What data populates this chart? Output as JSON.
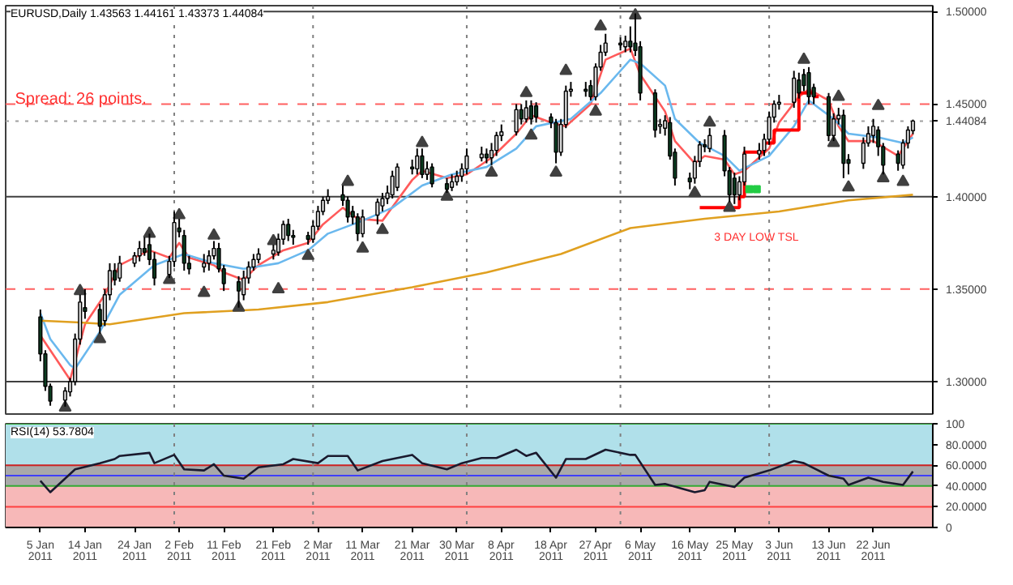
{
  "chart_data": [
    {
      "type": "candlestick",
      "title": "EURUSD,Daily 1.43563 1.44161 1.43373 1.44084",
      "x": [
        "2011-01-05",
        "2011-01-06",
        "2011-01-07",
        "2011-01-10",
        "2011-01-11",
        "2011-01-12",
        "2011-01-13",
        "2011-01-14",
        "2011-01-17",
        "2011-01-18",
        "2011-01-19",
        "2011-01-20",
        "2011-01-21",
        "2011-01-24",
        "2011-01-25",
        "2011-01-26",
        "2011-01-27",
        "2011-01-28",
        "2011-01-31",
        "2011-02-01",
        "2011-02-02",
        "2011-02-03",
        "2011-02-04",
        "2011-02-07",
        "2011-02-08",
        "2011-02-09",
        "2011-02-10",
        "2011-02-11",
        "2011-02-14",
        "2011-02-15",
        "2011-02-16",
        "2011-02-17",
        "2011-02-18",
        "2011-02-21",
        "2011-02-22",
        "2011-02-23",
        "2011-02-24",
        "2011-02-25",
        "2011-02-28",
        "2011-03-01",
        "2011-03-02",
        "2011-03-03",
        "2011-03-04",
        "2011-03-07",
        "2011-03-08",
        "2011-03-09",
        "2011-03-10",
        "2011-03-11",
        "2011-03-14",
        "2011-03-15",
        "2011-03-16",
        "2011-03-17",
        "2011-03-18",
        "2011-03-21",
        "2011-03-22",
        "2011-03-23",
        "2011-03-24",
        "2011-03-25",
        "2011-03-28",
        "2011-03-29",
        "2011-03-30",
        "2011-03-31",
        "2011-04-01",
        "2011-04-04",
        "2011-04-05",
        "2011-04-06",
        "2011-04-07",
        "2011-04-08",
        "2011-04-11",
        "2011-04-12",
        "2011-04-13",
        "2011-04-14",
        "2011-04-15",
        "2011-04-18",
        "2011-04-19",
        "2011-04-20",
        "2011-04-21",
        "2011-04-22",
        "2011-04-25",
        "2011-04-26",
        "2011-04-27",
        "2011-04-28",
        "2011-04-29",
        "2011-05-02",
        "2011-05-03",
        "2011-05-04",
        "2011-05-05",
        "2011-05-06",
        "2011-05-09",
        "2011-05-10",
        "2011-05-11",
        "2011-05-12",
        "2011-05-13",
        "2011-05-16",
        "2011-05-17",
        "2011-05-18",
        "2011-05-19",
        "2011-05-20",
        "2011-05-23",
        "2011-05-24",
        "2011-05-25",
        "2011-05-26",
        "2011-05-27",
        "2011-05-30",
        "2011-05-31",
        "2011-06-01",
        "2011-06-02",
        "2011-06-03",
        "2011-06-06",
        "2011-06-07",
        "2011-06-08",
        "2011-06-09",
        "2011-06-10",
        "2011-06-13",
        "2011-06-14",
        "2011-06-15",
        "2011-06-16",
        "2011-06-17",
        "2011-06-20",
        "2011-06-21",
        "2011-06-22",
        "2011-06-23",
        "2011-06-24",
        "2011-06-27",
        "2011-06-28",
        "2011-06-29",
        "2011-06-30"
      ],
      "ohlc": [
        [
          1.335,
          1.339,
          1.311,
          1.315
        ],
        [
          1.315,
          1.317,
          1.295,
          1.2975
        ],
        [
          1.2975,
          1.299,
          1.287,
          1.2895
        ],
        [
          1.29,
          1.297,
          1.2865,
          1.295
        ],
        [
          1.2945,
          1.302,
          1.292,
          1.3
        ],
        [
          1.3,
          1.326,
          1.298,
          1.323
        ],
        [
          1.323,
          1.347,
          1.32,
          1.343
        ],
        [
          1.34,
          1.35,
          1.334,
          1.338
        ],
        [
          1.339,
          1.342,
          1.326,
          1.33
        ],
        [
          1.333,
          1.35,
          1.33,
          1.347
        ],
        [
          1.347,
          1.364,
          1.344,
          1.36
        ],
        [
          1.36,
          1.364,
          1.352,
          1.355
        ],
        [
          1.356,
          1.368,
          1.354,
          1.364
        ],
        [
          1.364,
          1.37,
          1.362,
          1.368
        ],
        [
          1.368,
          1.376,
          1.365,
          1.372
        ],
        [
          1.372,
          1.378,
          1.368,
          1.37
        ],
        [
          1.374,
          1.38,
          1.363,
          1.366
        ],
        [
          1.366,
          1.37,
          1.352,
          1.356
        ],
        [
          1.358,
          1.368,
          1.356,
          1.365
        ],
        [
          1.365,
          1.392,
          1.362,
          1.386
        ],
        [
          1.383,
          1.388,
          1.378,
          1.381
        ],
        [
          1.379,
          1.382,
          1.36,
          1.364
        ],
        [
          1.364,
          1.368,
          1.358,
          1.361
        ],
        [
          1.362,
          1.369,
          1.359,
          1.364
        ],
        [
          1.364,
          1.371,
          1.36,
          1.368
        ],
        [
          1.368,
          1.376,
          1.366,
          1.372
        ],
        [
          1.372,
          1.375,
          1.359,
          1.361
        ],
        [
          1.361,
          1.363,
          1.349,
          1.353
        ],
        [
          1.354,
          1.357,
          1.34,
          1.349
        ],
        [
          1.347,
          1.36,
          1.344,
          1.356
        ],
        [
          1.356,
          1.365,
          1.353,
          1.362
        ],
        [
          1.362,
          1.369,
          1.36,
          1.366
        ],
        [
          1.366,
          1.372,
          1.364,
          1.369
        ],
        [
          1.369,
          1.374,
          1.366,
          1.371
        ],
        [
          1.37,
          1.38,
          1.368,
          1.377
        ],
        [
          1.377,
          1.387,
          1.374,
          1.385
        ],
        [
          1.385,
          1.388,
          1.376,
          1.379
        ],
        [
          1.379,
          1.382,
          1.374,
          1.378
        ],
        [
          1.379,
          1.381,
          1.374,
          1.377
        ],
        [
          1.377,
          1.387,
          1.375,
          1.384
        ],
        [
          1.384,
          1.395,
          1.382,
          1.392
        ],
        [
          1.392,
          1.4,
          1.39,
          1.398
        ],
        [
          1.398,
          1.404,
          1.396,
          1.4
        ],
        [
          1.401,
          1.406,
          1.395,
          1.398
        ],
        [
          1.398,
          1.4,
          1.386,
          1.389
        ],
        [
          1.392,
          1.395,
          1.385,
          1.389
        ],
        [
          1.389,
          1.391,
          1.376,
          1.38
        ],
        [
          1.38,
          1.393,
          1.378,
          1.389
        ],
        [
          1.39,
          1.399,
          1.385,
          1.397
        ],
        [
          1.395,
          1.402,
          1.392,
          1.399
        ],
        [
          1.399,
          1.406,
          1.396,
          1.402
        ],
        [
          1.401,
          1.414,
          1.399,
          1.411
        ],
        [
          1.405,
          1.418,
          1.403,
          1.416
        ],
        [
          1.416,
          1.42,
          1.412,
          1.415
        ],
        [
          1.415,
          1.426,
          1.412,
          1.422
        ],
        [
          1.422,
          1.426,
          1.41,
          1.412
        ],
        [
          1.412,
          1.419,
          1.409,
          1.415
        ],
        [
          1.416,
          1.418,
          1.405,
          1.407
        ],
        [
          1.407,
          1.41,
          1.402,
          1.404
        ],
        [
          1.405,
          1.412,
          1.403,
          1.408
        ],
        [
          1.408,
          1.414,
          1.406,
          1.411
        ],
        [
          1.411,
          1.418,
          1.408,
          1.415
        ],
        [
          1.415,
          1.426,
          1.412,
          1.422
        ],
        [
          1.421,
          1.427,
          1.419,
          1.423
        ],
        [
          1.423,
          1.426,
          1.418,
          1.421
        ],
        [
          1.421,
          1.429,
          1.417,
          1.425
        ],
        [
          1.425,
          1.435,
          1.422,
          1.433
        ],
        [
          1.433,
          1.439,
          1.43,
          1.435
        ],
        [
          1.435,
          1.45,
          1.433,
          1.447
        ],
        [
          1.447,
          1.45,
          1.439,
          1.442
        ],
        [
          1.442,
          1.452,
          1.44,
          1.448
        ],
        [
          1.449,
          1.452,
          1.439,
          1.442
        ],
        [
          1.449,
          1.451,
          1.44,
          1.443
        ],
        [
          1.443,
          1.445,
          1.437,
          1.44
        ],
        [
          1.44,
          1.442,
          1.418,
          1.424
        ],
        [
          1.424,
          1.442,
          1.422,
          1.439
        ],
        [
          1.439,
          1.46,
          1.437,
          1.457
        ],
        [
          1.457,
          1.462,
          1.454,
          1.458
        ],
        [
          1.458,
          1.462,
          1.454,
          1.457
        ],
        [
          1.46,
          1.463,
          1.452,
          1.454
        ],
        [
          1.454,
          1.472,
          1.452,
          1.47
        ],
        [
          1.47,
          1.482,
          1.468,
          1.478
        ],
        [
          1.478,
          1.488,
          1.476,
          1.483
        ],
        [
          1.483,
          1.486,
          1.479,
          1.482
        ],
        [
          1.481,
          1.487,
          1.478,
          1.484
        ],
        [
          1.484,
          1.492,
          1.478,
          1.481
        ],
        [
          1.483,
          1.499,
          1.476,
          1.479
        ],
        [
          1.481,
          1.484,
          1.452,
          1.456
        ],
        [
          1.456,
          1.458,
          1.432,
          1.436
        ],
        [
          1.438,
          1.442,
          1.434,
          1.439
        ],
        [
          1.437,
          1.444,
          1.433,
          1.441
        ],
        [
          1.44,
          1.443,
          1.42,
          1.422
        ],
        [
          1.424,
          1.426,
          1.406,
          1.41
        ],
        [
          1.41,
          1.413,
          1.404,
          1.408
        ],
        [
          1.41,
          1.422,
          1.407,
          1.419
        ],
        [
          1.419,
          1.43,
          1.416,
          1.428
        ],
        [
          1.428,
          1.431,
          1.424,
          1.427
        ],
        [
          1.426,
          1.437,
          1.424,
          1.433
        ],
        [
          1.433,
          1.436,
          1.411,
          1.414
        ],
        [
          1.414,
          1.416,
          1.397,
          1.401
        ],
        [
          1.41,
          1.413,
          1.396,
          1.401
        ],
        [
          1.401,
          1.411,
          1.398,
          1.408
        ],
        [
          1.408,
          1.427,
          1.406,
          1.423
        ],
        [
          1.423,
          1.429,
          1.42,
          1.425
        ],
        [
          1.425,
          1.434,
          1.422,
          1.431
        ],
        [
          1.431,
          1.446,
          1.428,
          1.443
        ],
        [
          1.443,
          1.452,
          1.44,
          1.45
        ],
        [
          1.45,
          1.455,
          1.447,
          1.451
        ],
        [
          1.451,
          1.468,
          1.448,
          1.464
        ],
        [
          1.463,
          1.467,
          1.453,
          1.456
        ],
        [
          1.466,
          1.469,
          1.457,
          1.46
        ],
        [
          1.467,
          1.47,
          1.45,
          1.454
        ],
        [
          1.459,
          1.461,
          1.45,
          1.454
        ],
        [
          1.454,
          1.456,
          1.43,
          1.433
        ],
        [
          1.433,
          1.445,
          1.43,
          1.442
        ],
        [
          1.442,
          1.448,
          1.439,
          1.444
        ],
        [
          1.444,
          1.447,
          1.41,
          1.418
        ],
        [
          1.42,
          1.423,
          1.412,
          1.418
        ],
        [
          1.418,
          1.432,
          1.415,
          1.429
        ],
        [
          1.429,
          1.438,
          1.427,
          1.434
        ],
        [
          1.433,
          1.442,
          1.429,
          1.438
        ],
        [
          1.436,
          1.438,
          1.422,
          1.427
        ],
        [
          1.427,
          1.429,
          1.412,
          1.417
        ],
        [
          1.423,
          1.425,
          1.414,
          1.418
        ],
        [
          1.417,
          1.431,
          1.415,
          1.429
        ],
        [
          1.429,
          1.438,
          1.426,
          1.436
        ],
        [
          1.43563,
          1.44161,
          1.43373,
          1.44084
        ]
      ],
      "colors": [
        "#0b3d20",
        "#0b3d20",
        "#0b3d20",
        "#d8d8d8",
        "#d8d8d8",
        "#d8d8d8",
        "#d8d8d8",
        "#0b3d20",
        "#0b3d20",
        "#d8d8d8",
        "#d8d8d8",
        "#0b3d20",
        "#d8d8d8",
        "#d8d8d8",
        "#d8d8d8",
        "#0b3d20",
        "#0b3d20",
        "#0b3d20",
        "#d8d8d8",
        "#d8d8d8",
        "#0b3d20",
        "#0b3d20",
        "#0b3d20",
        "#d8d8d8",
        "#d8d8d8",
        "#d8d8d8",
        "#0b3d20",
        "#0b3d20",
        "#0b3d20",
        "#d8d8d8",
        "#d8d8d8",
        "#d8d8d8",
        "#d8d8d8",
        "#d8d8d8",
        "#d8d8d8",
        "#d8d8d8",
        "#0b3d20",
        "#0b3d20",
        "#0b3d20",
        "#d8d8d8",
        "#d8d8d8",
        "#d8d8d8",
        "#d8d8d8",
        "#0b3d20",
        "#0b3d20",
        "#0b3d20",
        "#0b3d20",
        "#d8d8d8",
        "#d8d8d8",
        "#d8d8d8",
        "#d8d8d8",
        "#d8d8d8",
        "#d8d8d8",
        "#0b3d20",
        "#d8d8d8",
        "#0b3d20",
        "#d8d8d8",
        "#0b3d20",
        "#0b3d20",
        "#d8d8d8",
        "#d8d8d8",
        "#d8d8d8",
        "#d8d8d8",
        "#d8d8d8",
        "#0b3d20",
        "#d8d8d8",
        "#d8d8d8",
        "#d8d8d8",
        "#d8d8d8",
        "#0b3d20",
        "#d8d8d8",
        "#0b3d20",
        "#0b3d20",
        "#0b3d20",
        "#0b3d20",
        "#d8d8d8",
        "#d8d8d8",
        "#d8d8d8",
        "#0b3d20",
        "#0b3d20",
        "#d8d8d8",
        "#d8d8d8",
        "#d8d8d8",
        "#0b3d20",
        "#d8d8d8",
        "#0b3d20",
        "#0b3d20",
        "#0b3d20",
        "#0b3d20",
        "#d8d8d8",
        "#d8d8d8",
        "#0b3d20",
        "#0b3d20",
        "#0b3d20",
        "#d8d8d8",
        "#d8d8d8",
        "#0b3d20",
        "#d8d8d8",
        "#0b3d20",
        "#0b3d20",
        "#0b3d20",
        "#d8d8d8",
        "#d8d8d8",
        "#d8d8d8",
        "#d8d8d8",
        "#d8d8d8",
        "#d8d8d8",
        "#d8d8d8",
        "#d8d8d8",
        "#0b3d20",
        "#0b3d20",
        "#0b3d20",
        "#0b3d20",
        "#0b3d20",
        "#d8d8d8",
        "#d8d8d8",
        "#0b3d20",
        "#0b3d20",
        "#d8d8d8",
        "#d8d8d8",
        "#d8d8d8",
        "#0b3d20",
        "#0b3d20",
        "#0b3d20",
        "#d8d8d8",
        "#d8d8d8",
        "#d8d8d8"
      ],
      "series": [
        {
          "type": "line",
          "color": "#ff5a5a",
          "x": [
            "2011-01-05",
            "2011-01-11",
            "2011-01-12",
            "2011-01-14",
            "2011-01-18",
            "2011-01-21",
            "2011-01-27",
            "2011-01-31",
            "2011-02-02",
            "2011-02-04",
            "2011-02-09",
            "2011-02-11",
            "2011-02-15",
            "2011-02-18",
            "2011-02-23",
            "2011-02-28",
            "2011-03-03",
            "2011-03-07",
            "2011-03-10",
            "2011-03-15",
            "2011-03-21",
            "2011-03-23",
            "2011-03-28",
            "2011-04-01",
            "2011-04-06",
            "2011-04-11",
            "2011-04-14",
            "2011-04-18",
            "2011-04-21",
            "2011-04-26",
            "2011-04-29",
            "2011-05-04",
            "2011-05-06",
            "2011-05-11",
            "2011-05-13",
            "2011-05-17",
            "2011-05-19",
            "2011-05-23",
            "2011-05-25",
            "2011-05-27",
            "2011-06-01",
            "2011-06-03",
            "2011-06-07",
            "2011-06-09",
            "2011-06-13",
            "2011-06-15",
            "2011-06-17",
            "2011-06-22",
            "2011-06-27",
            "2011-06-30"
          ],
          "values": [
            1.325,
            1.301,
            1.311,
            1.331,
            1.347,
            1.363,
            1.371,
            1.367,
            1.375,
            1.367,
            1.363,
            1.359,
            1.355,
            1.363,
            1.371,
            1.375,
            1.385,
            1.394,
            1.388,
            1.387,
            1.409,
            1.414,
            1.41,
            1.412,
            1.421,
            1.434,
            1.444,
            1.44,
            1.438,
            1.45,
            1.474,
            1.48,
            1.466,
            1.446,
            1.43,
            1.418,
            1.422,
            1.42,
            1.412,
            1.414,
            1.426,
            1.44,
            1.454,
            1.458,
            1.452,
            1.438,
            1.43,
            1.43,
            1.422,
            1.434
          ]
        },
        {
          "type": "line",
          "color": "#6ab8ee",
          "x": [
            "2011-01-05",
            "2011-01-07",
            "2011-01-11",
            "2011-01-12",
            "2011-01-17",
            "2011-01-21",
            "2011-01-28",
            "2011-02-03",
            "2011-02-09",
            "2011-02-15",
            "2011-02-22",
            "2011-02-28",
            "2011-03-04",
            "2011-03-11",
            "2011-03-17",
            "2011-03-23",
            "2011-03-29",
            "2011-04-05",
            "2011-04-11",
            "2011-04-15",
            "2011-04-22",
            "2011-04-28",
            "2011-05-04",
            "2011-05-06",
            "2011-05-11",
            "2011-05-13",
            "2011-05-18",
            "2011-05-23",
            "2011-05-26",
            "2011-06-01",
            "2011-06-06",
            "2011-06-09",
            "2011-06-14",
            "2011-06-17",
            "2011-06-23",
            "2011-06-28",
            "2011-06-30"
          ],
          "values": [
            1.337,
            1.323,
            1.309,
            1.307,
            1.327,
            1.347,
            1.363,
            1.369,
            1.364,
            1.361,
            1.364,
            1.371,
            1.38,
            1.387,
            1.394,
            1.406,
            1.412,
            1.416,
            1.426,
            1.438,
            1.442,
            1.456,
            1.474,
            1.472,
            1.46,
            1.442,
            1.429,
            1.422,
            1.414,
            1.422,
            1.438,
            1.452,
            1.442,
            1.434,
            1.432,
            1.429,
            1.432
          ]
        },
        {
          "type": "line",
          "color": "#e0a020",
          "x": [
            "2011-01-05",
            "2011-01-13",
            "2011-01-19",
            "2011-02-03",
            "2011-02-18",
            "2011-03-04",
            "2011-03-21",
            "2011-04-05",
            "2011-04-20",
            "2011-05-04",
            "2011-05-19",
            "2011-06-03",
            "2011-06-17",
            "2011-06-30"
          ],
          "values": [
            1.333,
            1.332,
            1.331,
            1.337,
            1.339,
            1.343,
            1.351,
            1.359,
            1.369,
            1.383,
            1.388,
            1.392,
            1.398,
            1.401
          ]
        },
        {
          "type": "step",
          "color": "#ff0000",
          "x": [
            "2011-05-18",
            "2011-05-26",
            "2011-05-27",
            "2011-05-31",
            "2011-06-02",
            "2011-06-07",
            "2011-06-10",
            "2011-06-11"
          ],
          "values": [
            1.394,
            1.4,
            1.424,
            1.429,
            1.436,
            1.456,
            1.454,
            1.454
          ]
        },
        {
          "type": "scatter",
          "color": "#404040",
          "marker": "triangle",
          "x": [
            "2011-01-13",
            "2011-01-27",
            "2011-02-02",
            "2011-02-09",
            "2011-02-21",
            "2011-03-08",
            "2011-03-23",
            "2011-04-13",
            "2011-04-21",
            "2011-04-28",
            "2011-05-05",
            "2011-05-20",
            "2011-06-08",
            "2011-06-15",
            "2011-06-23"
          ],
          "values": [
            1.349,
            1.38,
            1.39,
            1.379,
            1.376,
            1.408,
            1.429,
            1.456,
            1.468,
            1.492,
            1.498,
            1.44,
            1.474,
            1.454,
            1.449
          ]
        },
        {
          "type": "scatter",
          "color": "#404040",
          "marker": "triangle",
          "x": [
            "2011-01-10",
            "2011-01-17",
            "2011-01-31",
            "2011-02-07",
            "2011-02-14",
            "2011-02-22",
            "2011-02-28",
            "2011-03-11",
            "2011-03-15",
            "2011-03-28",
            "2011-04-06",
            "2011-04-14",
            "2011-04-19",
            "2011-04-27",
            "2011-05-17",
            "2011-05-24",
            "2011-06-14",
            "2011-06-17",
            "2011-06-24",
            "2011-06-28"
          ],
          "values": [
            1.286,
            1.323,
            1.355,
            1.348,
            1.34,
            1.35,
            1.368,
            1.372,
            1.382,
            1.4,
            1.413,
            1.433,
            1.413,
            1.446,
            1.402,
            1.394,
            1.429,
            1.405,
            1.41,
            1.408
          ]
        },
        {
          "type": "scatter",
          "color": "#22cc44",
          "marker": "square",
          "x": [
            "2011-05-28T00:00",
            "2011-05-29T12:00"
          ],
          "values": [
            1.404,
            1.404
          ]
        }
      ],
      "xlim": [
        "2010-12-29",
        "2011-07-04"
      ],
      "ylim": [
        1.2825,
        1.5032
      ],
      "yticks": [
        {
          "value": 1.5,
          "label": "1.50000"
        },
        {
          "value": 1.45,
          "label": "1.45000"
        },
        {
          "value": 1.44084,
          "label": "1.44084"
        },
        {
          "value": 1.4,
          "label": "1.40000"
        },
        {
          "value": 1.35,
          "label": "1.35000"
        },
        {
          "value": 1.3,
          "label": "1.30000"
        }
      ],
      "tick_labels": "y",
      "ref_lines": [
        {
          "axis": "y",
          "value": 1.5,
          "color": "#404040",
          "line_style": "solid"
        },
        {
          "axis": "y",
          "value": 1.4,
          "color": "#404040",
          "line_style": "solid"
        },
        {
          "axis": "y",
          "value": 1.3,
          "color": "#404040",
          "line_style": "solid"
        },
        {
          "axis": "y",
          "value": 1.45,
          "color": "#ff6060",
          "line_style": "dashed"
        },
        {
          "axis": "y",
          "value": 1.35,
          "color": "#ff6060",
          "line_style": "dashed"
        },
        {
          "axis": "y",
          "value": 1.44084,
          "color": "#a0a0a0",
          "line_style": "dotted"
        },
        {
          "axis": "x",
          "value": "2011-02-01",
          "color": "#808080",
          "line_style": "dotted"
        },
        {
          "axis": "x",
          "value": "2011-03-01",
          "color": "#808080",
          "line_style": "dotted"
        },
        {
          "axis": "x",
          "value": "2011-04-01",
          "color": "#808080",
          "line_style": "dotted"
        },
        {
          "axis": "x",
          "value": "2011-05-02",
          "color": "#808080",
          "line_style": "dotted"
        },
        {
          "axis": "x",
          "value": "2011-06-01",
          "color": "#808080",
          "line_style": "dotted"
        }
      ],
      "annotations": [
        "Spread: 26 points.",
        "3 DAY LOW TSL"
      ]
    },
    {
      "type": "line",
      "title": "RSI(14) 53.7804",
      "series": [
        {
          "color": "#1a1a2e",
          "x": [
            "2011-01-05",
            "2011-01-07",
            "2011-01-12",
            "2011-01-17",
            "2011-01-20",
            "2011-01-21",
            "2011-01-27",
            "2011-01-28",
            "2011-02-01",
            "2011-02-03",
            "2011-02-07",
            "2011-02-09",
            "2011-02-11",
            "2011-02-15",
            "2011-02-18",
            "2011-02-23",
            "2011-02-25",
            "2011-03-02",
            "2011-03-04",
            "2011-03-08",
            "2011-03-10",
            "2011-03-15",
            "2011-03-21",
            "2011-03-23",
            "2011-03-28",
            "2011-03-31",
            "2011-04-04",
            "2011-04-07",
            "2011-04-11",
            "2011-04-13",
            "2011-04-15",
            "2011-04-19",
            "2011-04-21",
            "2011-04-25",
            "2011-04-29",
            "2011-05-04",
            "2011-05-05",
            "2011-05-09",
            "2011-05-11",
            "2011-05-17",
            "2011-05-19",
            "2011-05-20",
            "2011-05-25",
            "2011-05-27",
            "2011-06-01",
            "2011-06-06",
            "2011-06-08",
            "2011-06-13",
            "2011-06-16",
            "2011-06-17",
            "2011-06-21",
            "2011-06-24",
            "2011-06-28",
            "2011-06-30"
          ],
          "values": [
            45,
            34,
            56,
            62,
            66,
            69,
            72,
            62,
            70,
            56,
            55,
            61,
            50,
            47,
            58,
            61,
            66,
            62,
            69,
            69,
            55,
            64,
            70,
            62,
            56,
            62,
            67,
            67,
            75,
            69,
            72,
            48,
            66,
            66,
            75,
            70,
            70,
            41,
            42,
            34,
            36,
            44,
            39,
            48,
            55,
            64,
            62,
            50,
            47,
            41,
            48,
            44,
            41,
            54
          ]
        }
      ],
      "xlim": [
        "2010-12-29",
        "2011-07-04"
      ],
      "ylim": [
        0,
        100
      ],
      "xticks": [
        {
          "value": "2011-01-05",
          "label": "5 Jan 2011"
        },
        {
          "value": "2011-01-14",
          "label": "14 Jan 2011"
        },
        {
          "value": "2011-01-24",
          "label": "24 Jan 2011"
        },
        {
          "value": "2011-02-02",
          "label": "2 Feb 2011"
        },
        {
          "value": "2011-02-11",
          "label": "11 Feb 2011"
        },
        {
          "value": "2011-02-21",
          "label": "21 Feb 2011"
        },
        {
          "value": "2011-03-02",
          "label": "2 Mar 2011"
        },
        {
          "value": "2011-03-11",
          "label": "11 Mar 2011"
        },
        {
          "value": "2011-03-21",
          "label": "21 Mar 2011"
        },
        {
          "value": "2011-03-30",
          "label": "30 Mar 2011"
        },
        {
          "value": "2011-04-08",
          "label": "8 Apr 2011"
        },
        {
          "value": "2011-04-18",
          "label": "18 Apr 2011"
        },
        {
          "value": "2011-04-27",
          "label": "27 Apr 2011"
        },
        {
          "value": "2011-05-06",
          "label": "6 May 2011"
        },
        {
          "value": "2011-05-16",
          "label": "16 May 2011"
        },
        {
          "value": "2011-05-25",
          "label": "25 May 2011"
        },
        {
          "value": "2011-06-03",
          "label": "3 Jun 2011"
        },
        {
          "value": "2011-06-13",
          "label": "13 Jun 2011"
        },
        {
          "value": "2011-06-22",
          "label": "22 Jun 2011"
        }
      ],
      "yticks": [
        {
          "value": 0,
          "label": "0"
        },
        {
          "value": 20,
          "label": "20.0000"
        },
        {
          "value": 40,
          "label": "40.0000"
        },
        {
          "value": 60,
          "label": "60.0000"
        },
        {
          "value": 80,
          "label": "80.0000"
        },
        {
          "value": 100,
          "label": "100"
        }
      ],
      "bands": [
        {
          "axis": "y",
          "from": 60,
          "to": 100,
          "color": "#b0e0ea"
        },
        {
          "axis": "y",
          "from": 40,
          "to": 60,
          "color": "#a9a9a9"
        },
        {
          "axis": "y",
          "from": 0,
          "to": 40,
          "color": "#f7b8b8"
        }
      ],
      "ref_lines": [
        {
          "axis": "y",
          "value": 60,
          "color": "#cc2222",
          "line_style": "solid"
        },
        {
          "axis": "y",
          "value": 50,
          "color": "#4040ff",
          "line_style": "solid"
        },
        {
          "axis": "y",
          "value": 40,
          "color": "#33aa33",
          "line_style": "solid"
        },
        {
          "axis": "y",
          "value": 20,
          "color": "#ff4040",
          "line_style": "solid"
        },
        {
          "axis": "y",
          "value": 100,
          "color": "#33aa33",
          "line_style": "solid"
        },
        {
          "axis": "x",
          "value": "2011-02-01",
          "color": "#808080",
          "line_style": "dotted"
        },
        {
          "axis": "x",
          "value": "2011-03-01",
          "color": "#808080",
          "line_style": "dotted"
        },
        {
          "axis": "x",
          "value": "2011-04-01",
          "color": "#808080",
          "line_style": "dotted"
        },
        {
          "axis": "x",
          "value": "2011-05-02",
          "color": "#808080",
          "line_style": "dotted"
        },
        {
          "axis": "x",
          "value": "2011-06-01",
          "color": "#808080",
          "line_style": "dotted"
        }
      ]
    }
  ]
}
